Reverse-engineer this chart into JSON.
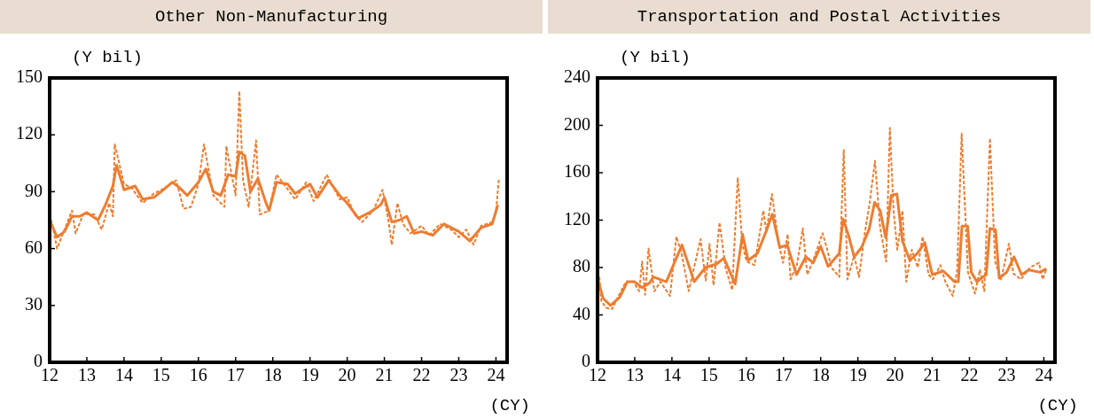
{
  "chart_data": [
    {
      "type": "line",
      "title": "Other Non-Manufacturing",
      "xlabel": "(CY)",
      "ylabel": "(Y bil)",
      "xlim": [
        12,
        24.3
      ],
      "xticks": [
        12,
        13,
        14,
        15,
        16,
        17,
        18,
        19,
        20,
        21,
        22,
        23,
        24
      ],
      "ylim": [
        0,
        150
      ],
      "yticks": [
        0,
        30,
        60,
        90,
        120,
        150
      ],
      "grid": false,
      "legend": false,
      "series": [
        {
          "color": "#ed7d31",
          "line_style": "dashed",
          "x": [
            12.0,
            12.1,
            12.2,
            12.4,
            12.6,
            12.7,
            12.9,
            13.2,
            13.4,
            13.6,
            13.7,
            13.75,
            14.0,
            14.2,
            14.5,
            14.8,
            15.1,
            15.4,
            15.6,
            15.8,
            16.0,
            16.15,
            16.4,
            16.6,
            16.7,
            16.75,
            17.0,
            17.1,
            17.2,
            17.35,
            17.55,
            17.65,
            17.9,
            18.1,
            18.3,
            18.6,
            18.9,
            19.1,
            19.45,
            19.8,
            20.0,
            20.2,
            20.4,
            20.7,
            20.95,
            21.1,
            21.2,
            21.35,
            21.5,
            21.7,
            22.0,
            22.2,
            22.5,
            22.8,
            23.0,
            23.2,
            23.4,
            23.6,
            23.9,
            24.0,
            24.08
          ],
          "values": [
            78,
            70,
            60,
            70,
            80,
            68,
            78,
            78,
            70,
            84,
            77,
            115,
            94,
            92,
            84,
            89,
            92,
            96,
            81,
            82,
            94,
            115,
            88,
            84,
            82,
            114,
            88,
            143,
            96,
            82,
            117,
            78,
            80,
            99,
            94,
            86,
            95,
            85,
            99,
            86,
            87,
            78,
            74,
            80,
            91,
            76,
            62,
            84,
            73,
            68,
            72,
            67,
            73,
            70,
            66,
            70,
            62,
            72,
            74,
            79,
            97
          ]
        },
        {
          "color": "#ed7d31",
          "line_style": "solid",
          "x": [
            12.0,
            12.2,
            12.4,
            12.6,
            12.8,
            13.0,
            13.3,
            13.5,
            13.7,
            13.8,
            14.0,
            14.3,
            14.5,
            14.8,
            15.0,
            15.3,
            15.5,
            15.7,
            16.0,
            16.2,
            16.4,
            16.6,
            16.8,
            17.0,
            17.1,
            17.25,
            17.4,
            17.6,
            17.8,
            17.9,
            18.1,
            18.4,
            18.6,
            19.0,
            19.2,
            19.5,
            19.8,
            20.0,
            20.3,
            20.6,
            20.9,
            21.0,
            21.2,
            21.4,
            21.6,
            21.8,
            22.0,
            22.3,
            22.6,
            23.0,
            23.3,
            23.6,
            23.9,
            24.05
          ],
          "values": [
            75,
            66,
            69,
            77,
            77,
            79,
            75,
            83,
            93,
            104,
            91,
            93,
            86,
            87,
            90,
            95,
            92,
            88,
            95,
            102,
            90,
            88,
            99,
            98,
            111,
            109,
            90,
            97,
            85,
            80,
            95,
            94,
            89,
            94,
            87,
            96,
            88,
            84,
            76,
            79,
            83,
            87,
            74,
            75,
            77,
            68,
            69,
            67,
            73,
            69,
            64,
            71,
            73,
            83
          ]
        }
      ]
    },
    {
      "type": "line",
      "title": "Transportation and Postal Activities",
      "xlabel": "(CY)",
      "ylabel": "(Y bil)",
      "xlim": [
        12,
        24.3
      ],
      "xticks": [
        12,
        13,
        14,
        15,
        16,
        17,
        18,
        19,
        20,
        21,
        22,
        23,
        24
      ],
      "ylim": [
        0,
        240
      ],
      "yticks": [
        0,
        40,
        80,
        120,
        160,
        200,
        240
      ],
      "grid": false,
      "legend": false,
      "series": [
        {
          "color": "#ed7d31",
          "line_style": "dashed",
          "x": [
            12.05,
            12.1,
            12.23,
            12.39,
            12.63,
            12.76,
            12.96,
            13.12,
            13.2,
            13.28,
            13.37,
            13.53,
            13.69,
            13.95,
            14.12,
            14.26,
            14.45,
            14.77,
            14.91,
            15.01,
            15.12,
            15.28,
            15.44,
            15.62,
            15.77,
            15.89,
            16.01,
            16.22,
            16.46,
            16.54,
            16.69,
            16.87,
            16.99,
            17.11,
            17.19,
            17.36,
            17.52,
            17.64,
            17.8,
            18.05,
            18.17,
            18.29,
            18.5,
            18.62,
            18.72,
            18.9,
            19.03,
            19.19,
            19.31,
            19.46,
            19.6,
            19.76,
            19.86,
            19.96,
            20.06,
            20.2,
            20.3,
            20.45,
            20.61,
            20.74,
            20.9,
            21.02,
            21.22,
            21.35,
            21.55,
            21.67,
            21.79,
            21.96,
            22.15,
            22.28,
            22.4,
            22.55,
            22.69,
            22.85,
            23.06,
            23.18,
            23.38,
            23.63,
            23.87,
            23.97,
            24.07
          ],
          "values": [
            72,
            52,
            46,
            45,
            60,
            68,
            68,
            60,
            85,
            57,
            96,
            60,
            68,
            56,
            106,
            92,
            60,
            104,
            69,
            100,
            65,
            118,
            80,
            61,
            156,
            100,
            85,
            82,
            128,
            110,
            142,
            100,
            84,
            108,
            70,
            82,
            113,
            74,
            86,
            109,
            96,
            80,
            72,
            179,
            70,
            90,
            72,
            110,
            133,
            170,
            113,
            85,
            198,
            128,
            95,
            128,
            68,
            95,
            80,
            106,
            74,
            70,
            82,
            68,
            56,
            78,
            193,
            76,
            58,
            78,
            60,
            189,
            85,
            70,
            100,
            75,
            70,
            80,
            84,
            70,
            79
          ]
        },
        {
          "color": "#ed7d31",
          "line_style": "solid",
          "x": [
            12.0,
            12.15,
            12.35,
            12.6,
            12.8,
            13.0,
            13.2,
            13.4,
            13.5,
            13.85,
            14.27,
            14.6,
            14.9,
            15.2,
            15.4,
            15.7,
            15.9,
            16.05,
            16.3,
            16.55,
            16.7,
            16.9,
            17.1,
            17.35,
            17.6,
            17.8,
            18.0,
            18.2,
            18.5,
            18.6,
            18.75,
            18.9,
            19.1,
            19.3,
            19.45,
            19.6,
            19.75,
            19.9,
            20.05,
            20.2,
            20.4,
            20.6,
            20.8,
            21.0,
            21.3,
            21.6,
            21.7,
            21.8,
            21.95,
            22.05,
            22.2,
            22.45,
            22.55,
            22.7,
            22.8,
            23.0,
            23.2,
            23.4,
            23.6,
            23.9,
            24.07
          ],
          "values": [
            71,
            54,
            48,
            55,
            68,
            68,
            63,
            67,
            72,
            68,
            99,
            68,
            80,
            83,
            88,
            66,
            108,
            86,
            92,
            112,
            125,
            97,
            99,
            74,
            89,
            84,
            98,
            81,
            92,
            121,
            107,
            89,
            97,
            112,
            135,
            128,
            105,
            141,
            142,
            102,
            86,
            92,
            101,
            74,
            77,
            68,
            68,
            115,
            115,
            76,
            68,
            74,
            113,
            112,
            71,
            76,
            89,
            74,
            78,
            76,
            79
          ]
        }
      ]
    }
  ]
}
